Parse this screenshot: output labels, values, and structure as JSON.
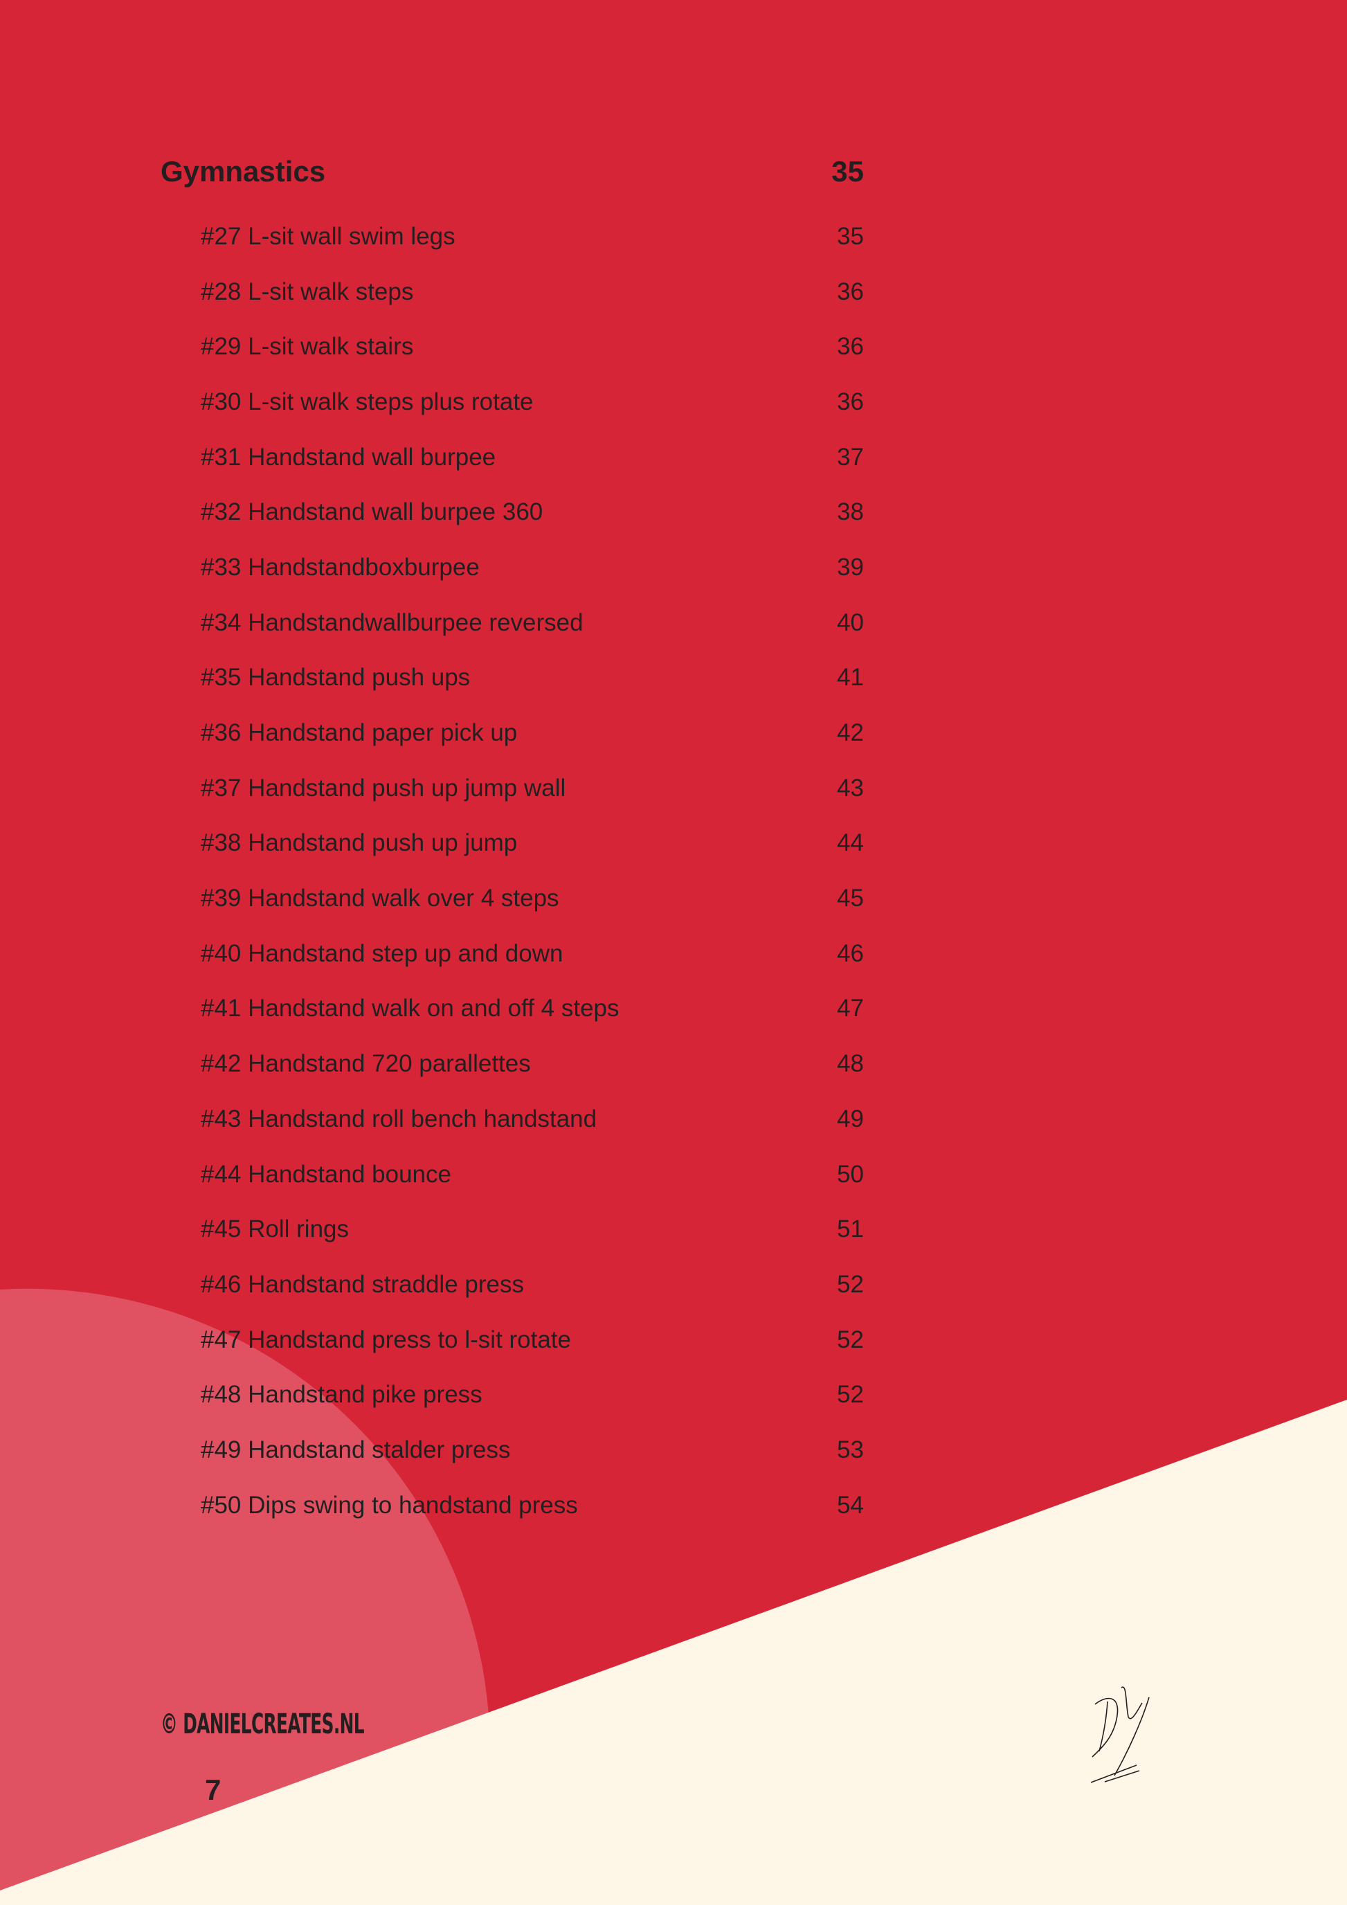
{
  "colors": {
    "background": "#D72538",
    "circle": "#E05262",
    "cream": "#FEF7E7",
    "text": "#231f20"
  },
  "section": {
    "title": "Gymnastics",
    "page": "35"
  },
  "items": [
    {
      "label": "#27 L-sit wall swim legs",
      "page": "35"
    },
    {
      "label": "#28 L-sit walk steps",
      "page": "36"
    },
    {
      "label": "#29 L-sit walk stairs",
      "page": "36"
    },
    {
      "label": "#30 L-sit walk steps plus rotate",
      "page": "36"
    },
    {
      "label": "#31 Handstand wall burpee",
      "page": "37"
    },
    {
      "label": "#32 Handstand wall burpee 360",
      "page": "38"
    },
    {
      "label": "#33 Handstandboxburpee",
      "page": "39"
    },
    {
      "label": "#34 Handstandwallburpee reversed",
      "page": "40"
    },
    {
      "label": "#35 Handstand push ups",
      "page": "41"
    },
    {
      "label": "#36 Handstand paper pick up",
      "page": "42"
    },
    {
      "label": "#37 Handstand push up jump wall",
      "page": "43"
    },
    {
      "label": "#38 Handstand push up jump",
      "page": "44"
    },
    {
      "label": "#39 Handstand walk over 4 steps",
      "page": "45"
    },
    {
      "label": "#40 Handstand step up and down",
      "page": "46"
    },
    {
      "label": "#41 Handstand walk on and off 4 steps",
      "page": "47"
    },
    {
      "label": "#42 Handstand 720 parallettes",
      "page": "48"
    },
    {
      "label": "#43 Handstand roll bench handstand",
      "page": "49"
    },
    {
      "label": "#44 Handstand bounce",
      "page": "50"
    },
    {
      "label": "#45 Roll rings",
      "page": "51"
    },
    {
      "label": "#46 Handstand straddle press",
      "page": "52"
    },
    {
      "label": "#47 Handstand press to  l-sit rotate",
      "page": "52"
    },
    {
      "label": "#48 Handstand pike press",
      "page": "52"
    },
    {
      "label": "#49 Handstand stalder press",
      "page": "53"
    },
    {
      "label": "#50 Dips swing to handstand press",
      "page": "54"
    }
  ],
  "footer": {
    "copyright": "© DANIELCREATES.NL",
    "page_number": "7",
    "signature": "DY"
  }
}
